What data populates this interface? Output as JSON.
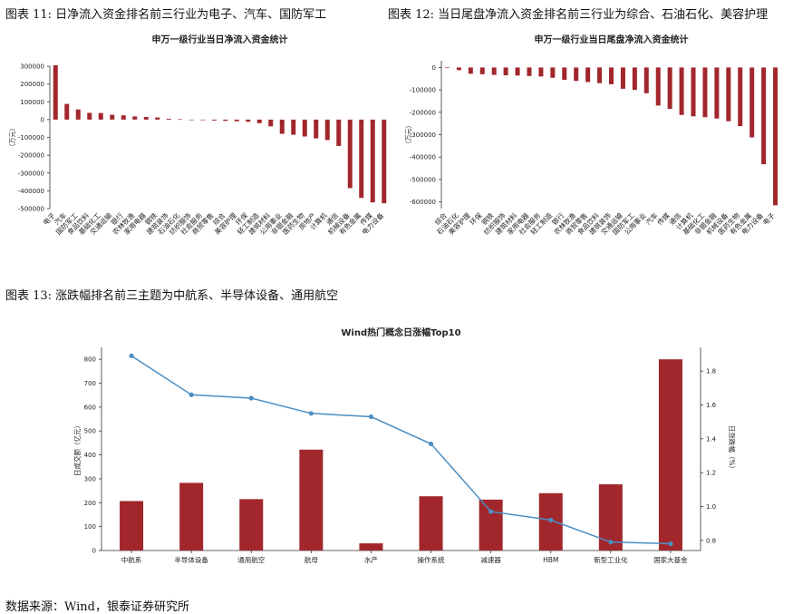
{
  "captions": {
    "fig11": "图表 11: 日净流入资金排名前三行业为电子、汽车、国防军工",
    "fig12": "图表 12: 当日尾盘净流入资金排名前三行业为综合、石油石化、美容护理",
    "fig13": "图表 13: 涨跌幅排名前三主题为中航系、半导体设备、通用航空",
    "source": "数据来源：Wind，银泰证券研究所"
  },
  "colors": {
    "bar": "#A1272C",
    "line": "#4C8FC3"
  },
  "chart_data": [
    {
      "type": "bar",
      "title": "申万一级行业当日净流入资金统计",
      "ylabel": "（万元）",
      "ylim": [
        -500000,
        300000
      ],
      "yticks": [
        "300000",
        "200000",
        "100000",
        "0",
        "-100000",
        "-200000",
        "-300000",
        "-400000",
        "-500000"
      ],
      "categories": [
        "电子",
        "汽车",
        "国防军工",
        "食品饮料",
        "基础化工",
        "交通运输",
        "银行",
        "农林牧渔",
        "家用电器",
        "钢铁",
        "建筑装饰",
        "石油石化",
        "纺织服饰",
        "社会服务",
        "商贸零售",
        "综合",
        "美容护理",
        "环保",
        "轻工制造",
        "建筑材料",
        "公用事业",
        "非银金融",
        "医药生物",
        "房地产",
        "计算机",
        "通信",
        "机械设备",
        "有色金属",
        "传媒",
        "电力设备"
      ],
      "values": [
        305000,
        88000,
        57000,
        38000,
        37000,
        27000,
        24000,
        18000,
        15000,
        12000,
        5000,
        2000,
        0,
        -1000,
        -5000,
        -7000,
        -9000,
        -12000,
        -20000,
        -38000,
        -80000,
        -85000,
        -95000,
        -105000,
        -115000,
        -148000,
        -385000,
        -440000,
        -465000,
        -470000
      ]
    },
    {
      "type": "bar",
      "title": "申万一级行业当日尾盘净流入资金统计",
      "ylabel": "（万元）",
      "ylim": [
        -630000,
        30000
      ],
      "yticks": [
        "0",
        "-100000",
        "-200000",
        "-300000",
        "-400000",
        "-500000",
        "-600000"
      ],
      "categories": [
        "综合",
        "石油石化",
        "美容护理",
        "环保",
        "钢铁",
        "纺织服饰",
        "建筑材料",
        "家用电器",
        "社会服务",
        "轻工制造",
        "银行",
        "农林牧渔",
        "商贸零售",
        "食品饮料",
        "建筑装饰",
        "交通运输",
        "国防军工",
        "公用事业",
        "汽车",
        "传媒",
        "通信",
        "计算机",
        "基础化工",
        "非银金融",
        "机械设备",
        "医药生物",
        "有色金属",
        "电力设备",
        "电子"
      ],
      "values": [
        -2000,
        -12000,
        -28000,
        -30000,
        -33000,
        -35000,
        -36000,
        -38000,
        -40000,
        -46000,
        -55000,
        -60000,
        -65000,
        -70000,
        -75000,
        -95000,
        -100000,
        -115000,
        -170000,
        -185000,
        -212000,
        -218000,
        -222000,
        -228000,
        -240000,
        -262000,
        -312000,
        -432000,
        -615000
      ]
    },
    {
      "type": "bar+line",
      "title": "Wind热门概念日涨幅Top10",
      "ylabel": "日成交额（亿元）",
      "y2label": "日涨跌幅（%）",
      "ylim": [
        0,
        850
      ],
      "y2lim": [
        0.74,
        1.94
      ],
      "yticks": [
        "0",
        "100",
        "200",
        "300",
        "400",
        "500",
        "600",
        "700",
        "800"
      ],
      "y2ticks": [
        "0.8",
        "1.0",
        "1.2",
        "1.4",
        "1.6",
        "1.8"
      ],
      "categories": [
        "中航系",
        "半导体设备",
        "通用航空",
        "航母",
        "水产",
        "操作系统",
        "减速器",
        "HBM",
        "新型工业化",
        "国家大基金"
      ],
      "series": [
        {
          "name": "日成交额",
          "axis": "left",
          "values": [
            207,
            283,
            215,
            422,
            30,
            227,
            213,
            240,
            277,
            800
          ]
        },
        {
          "name": "日涨跌幅",
          "axis": "right",
          "values": [
            1.89,
            1.66,
            1.64,
            1.55,
            1.53,
            1.37,
            0.97,
            0.92,
            0.79,
            0.78
          ]
        }
      ]
    }
  ]
}
